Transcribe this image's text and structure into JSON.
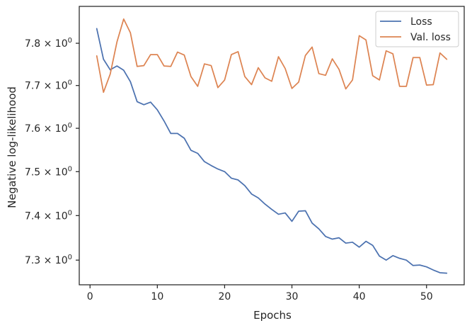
{
  "chart_data": {
    "type": "line",
    "xlabel": "Epochs",
    "ylabel": "Negative log-likelihood",
    "xlim": [
      -1.6,
      55.6
    ],
    "ylim": [
      7.2452,
      7.8884
    ],
    "yscale": "log",
    "x_ticks": [
      0,
      10,
      20,
      30,
      40,
      50
    ],
    "x_tick_labels": [
      "0",
      "10",
      "20",
      "30",
      "40",
      "50"
    ],
    "y_ticks": [
      7.3,
      7.4,
      7.5,
      7.6,
      7.7,
      7.8
    ],
    "y_tick_labels": [
      {
        "mant": "7.3",
        "base": "10",
        "exp": "0"
      },
      {
        "mant": "7.4",
        "base": "10",
        "exp": "0"
      },
      {
        "mant": "7.5",
        "base": "10",
        "exp": "0"
      },
      {
        "mant": "7.6",
        "base": "10",
        "exp": "0"
      },
      {
        "mant": "7.7",
        "base": "10",
        "exp": "0"
      },
      {
        "mant": "7.8",
        "base": "10",
        "exp": "0"
      }
    ],
    "grid": false,
    "legend_position": "top-right",
    "x": [
      1,
      2,
      3,
      4,
      5,
      6,
      7,
      8,
      9,
      10,
      11,
      12,
      13,
      14,
      15,
      16,
      17,
      18,
      19,
      20,
      21,
      22,
      23,
      24,
      25,
      26,
      27,
      28,
      29,
      30,
      31,
      32,
      33,
      34,
      35,
      36,
      37,
      38,
      39,
      40,
      41,
      42,
      43,
      44,
      45,
      46,
      47,
      48,
      49,
      50,
      51,
      52,
      53
    ],
    "series": [
      {
        "name": "Loss",
        "color": "#4c72b0",
        "values": [
          7.835,
          7.762,
          7.737,
          7.746,
          7.736,
          7.709,
          7.662,
          7.655,
          7.661,
          7.643,
          7.617,
          7.588,
          7.588,
          7.577,
          7.549,
          7.542,
          7.523,
          7.514,
          7.506,
          7.5,
          7.485,
          7.481,
          7.468,
          7.449,
          7.44,
          7.426,
          7.414,
          7.403,
          7.406,
          7.387,
          7.41,
          7.411,
          7.383,
          7.37,
          7.353,
          7.347,
          7.35,
          7.338,
          7.34,
          7.329,
          7.342,
          7.333,
          7.309,
          7.3,
          7.31,
          7.304,
          7.3,
          7.288,
          7.289,
          7.285,
          7.278,
          7.272,
          7.271
        ]
      },
      {
        "name": "Val. loss",
        "color": "#dd8452",
        "values": [
          7.77,
          7.684,
          7.727,
          7.803,
          7.858,
          7.825,
          7.745,
          7.747,
          7.773,
          7.773,
          7.746,
          7.745,
          7.779,
          7.772,
          7.721,
          7.698,
          7.751,
          7.747,
          7.695,
          7.713,
          7.773,
          7.78,
          7.721,
          7.702,
          7.742,
          7.718,
          7.71,
          7.768,
          7.74,
          7.693,
          7.708,
          7.771,
          7.791,
          7.728,
          7.724,
          7.763,
          7.738,
          7.692,
          7.713,
          7.818,
          7.808,
          7.723,
          7.713,
          7.782,
          7.775,
          7.698,
          7.698,
          7.766,
          7.766,
          7.701,
          7.702,
          7.777,
          7.762
        ]
      }
    ]
  }
}
